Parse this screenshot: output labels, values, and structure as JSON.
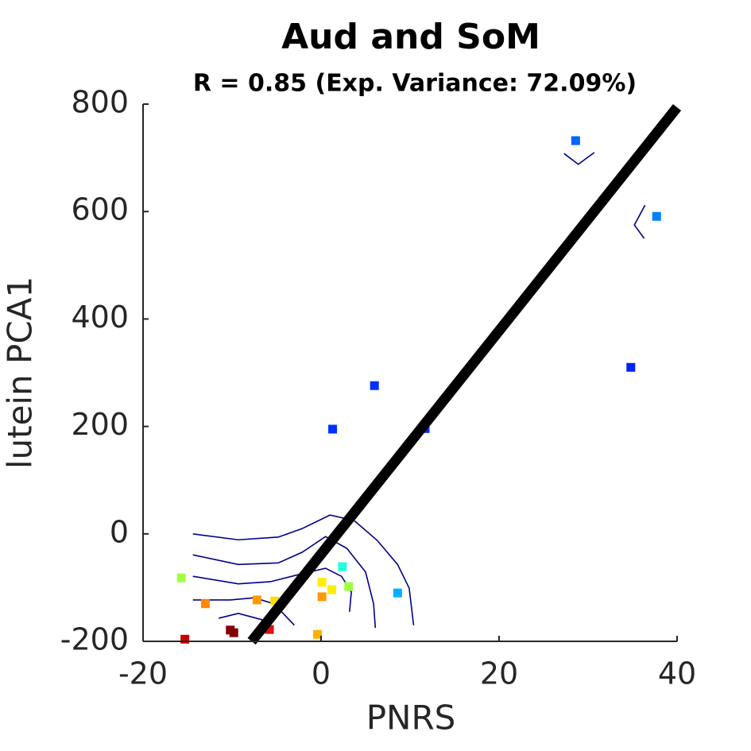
{
  "chart_data": {
    "type": "scatter",
    "title": "Aud and SoM",
    "subtitle": "R = 0.85 (Exp. Variance: 72.09%)",
    "x_label": "PNRS",
    "y_label": "lutein PCA1",
    "xlim": [
      -20,
      40
    ],
    "ylim": [
      -200,
      800
    ],
    "xticks": [
      -20,
      0,
      20,
      40
    ],
    "yticks": [
      -200,
      0,
      200,
      400,
      600,
      800
    ],
    "points": [
      {
        "x": 28.6,
        "y": 732,
        "color": "#0064ff"
      },
      {
        "x": 37.7,
        "y": 591,
        "color": "#0080ff"
      },
      {
        "x": 34.8,
        "y": 310,
        "color": "#0020ff"
      },
      {
        "x": 6.0,
        "y": 276,
        "color": "#0030ff"
      },
      {
        "x": 1.3,
        "y": 195,
        "color": "#0030ff"
      },
      {
        "x": 11.7,
        "y": 196,
        "color": "#0030ff"
      },
      {
        "x": 2.4,
        "y": -61,
        "color": "#20ffe0"
      },
      {
        "x": 8.6,
        "y": -110,
        "color": "#00b0ff"
      },
      {
        "x": 3.1,
        "y": -98,
        "color": "#a0ff40"
      },
      {
        "x": -15.7,
        "y": -82,
        "color": "#a0ff40"
      },
      {
        "x": 0.1,
        "y": -90,
        "color": "#ffee00"
      },
      {
        "x": 1.2,
        "y": -104,
        "color": "#ffee00"
      },
      {
        "x": 0.1,
        "y": -117,
        "color": "#ff9900"
      },
      {
        "x": -5.2,
        "y": -125,
        "color": "#ffdd00"
      },
      {
        "x": -7.2,
        "y": -123,
        "color": "#ff9900"
      },
      {
        "x": -13.0,
        "y": -130,
        "color": "#ff8800"
      },
      {
        "x": -0.4,
        "y": -187,
        "color": "#ffb000"
      },
      {
        "x": -5.8,
        "y": -178,
        "color": "#dd1010"
      },
      {
        "x": -10.2,
        "y": -179,
        "color": "#800000"
      },
      {
        "x": -9.8,
        "y": -184,
        "color": "#800000"
      },
      {
        "x": -15.3,
        "y": -196,
        "color": "#cc0000"
      }
    ],
    "fit_line": {
      "x": [
        -7.8,
        40
      ],
      "y": [
        -200,
        794
      ],
      "color": "#000000"
    },
    "contour_color": "#00008b",
    "contours": [
      {
        "x": [
          -14.4,
          -9.3,
          -4.8,
          -2.1,
          1.0,
          3.7,
          6.3,
          8.6,
          9.9,
          10.4
        ],
        "y": [
          0,
          -11,
          -6,
          10,
          35,
          25,
          -12,
          -57,
          -101,
          -170
        ]
      },
      {
        "x": [
          -14.4,
          -9.3,
          -4.8,
          -2.1,
          0.5,
          2.9,
          5.0,
          5.9,
          6.1
        ],
        "y": [
          -39,
          -57,
          -54,
          -34,
          -5,
          -27,
          -71,
          -130,
          -175
        ]
      },
      {
        "x": [
          -14.4,
          -9.3,
          -5.7,
          -2.1,
          0.5,
          2.3,
          3.4,
          3.2
        ],
        "y": [
          -79,
          -93,
          -89,
          -74,
          -64,
          -79,
          -108,
          -145
        ]
      },
      {
        "x": [
          -14.4,
          -10.2,
          -7.5,
          -5.3,
          -3.0
        ],
        "y": [
          -123,
          -123,
          -119,
          -130,
          -170
        ]
      },
      {
        "x": [
          -11.5,
          -9.3,
          -6.6
        ],
        "y": [
          -157,
          -148,
          -160
        ]
      },
      {
        "x": [
          27.3,
          28.9,
          30.7
        ],
        "y": [
          708,
          688,
          710
        ]
      },
      {
        "x": [
          36.4,
          35.2,
          36.3
        ],
        "y": [
          612,
          575,
          550
        ]
      }
    ]
  }
}
